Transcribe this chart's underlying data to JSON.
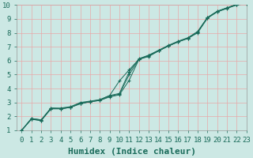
{
  "title": "",
  "xlabel": "Humidex (Indice chaleur)",
  "ylabel": "",
  "xlim": [
    -0.5,
    23
  ],
  "ylim": [
    1,
    10
  ],
  "xticks": [
    0,
    1,
    2,
    3,
    4,
    5,
    6,
    7,
    8,
    9,
    10,
    11,
    12,
    13,
    14,
    15,
    16,
    17,
    18,
    19,
    20,
    21,
    22,
    23
  ],
  "yticks": [
    1,
    2,
    3,
    4,
    5,
    6,
    7,
    8,
    9,
    10
  ],
  "bg_color": "#cce8e4",
  "grid_color": "#e8a8a8",
  "line_color": "#1a6b5a",
  "lines": [
    {
      "x": [
        0,
        1,
        2,
        3,
        4,
        5,
        6,
        7,
        8,
        9,
        10,
        11,
        12,
        13,
        14,
        15,
        16,
        17,
        18,
        19,
        20,
        21,
        22,
        23
      ],
      "y": [
        1.0,
        1.85,
        1.75,
        2.6,
        2.55,
        2.65,
        2.9,
        3.05,
        3.15,
        3.4,
        3.55,
        4.6,
        6.1,
        6.3,
        6.7,
        7.05,
        7.35,
        7.6,
        8.0,
        9.05,
        9.5,
        9.75,
        10.0,
        10.1
      ]
    },
    {
      "x": [
        0,
        1,
        2,
        3,
        4,
        5,
        6,
        7,
        8,
        9,
        10,
        11,
        12,
        13,
        14,
        15,
        16,
        17,
        18,
        19,
        20,
        21,
        22,
        23
      ],
      "y": [
        1.0,
        1.85,
        1.75,
        2.6,
        2.6,
        2.7,
        3.0,
        3.1,
        3.2,
        3.5,
        3.65,
        5.2,
        6.15,
        6.4,
        6.75,
        7.1,
        7.4,
        7.65,
        8.1,
        9.1,
        9.55,
        9.8,
        10.05,
        10.15
      ]
    },
    {
      "x": [
        0,
        1,
        2,
        3,
        4,
        5,
        6,
        7,
        8,
        9,
        10,
        11,
        12,
        13,
        14,
        15,
        16,
        17,
        18,
        19,
        20,
        21,
        22,
        23
      ],
      "y": [
        1.0,
        1.8,
        1.7,
        2.55,
        2.55,
        2.65,
        2.95,
        3.05,
        3.15,
        3.45,
        3.6,
        5.0,
        6.1,
        6.35,
        6.7,
        7.05,
        7.35,
        7.6,
        8.05,
        9.08,
        9.52,
        9.78,
        10.02,
        10.12
      ]
    },
    {
      "x": [
        0,
        1,
        2,
        3,
        4,
        5,
        6,
        7,
        8,
        9,
        10,
        11,
        12,
        13,
        14,
        15,
        16,
        17,
        18,
        19,
        20,
        21,
        22,
        23
      ],
      "y": [
        1.0,
        1.8,
        1.7,
        2.55,
        2.55,
        2.65,
        2.95,
        3.05,
        3.2,
        3.5,
        4.55,
        5.35,
        6.1,
        6.38,
        6.72,
        7.07,
        7.37,
        7.62,
        8.07,
        9.1,
        9.54,
        9.79,
        10.03,
        10.13
      ]
    }
  ],
  "marker": "+",
  "markersize": 3.5,
  "linewidth": 0.7,
  "xlabel_fontsize": 8,
  "tick_fontsize": 6.5
}
